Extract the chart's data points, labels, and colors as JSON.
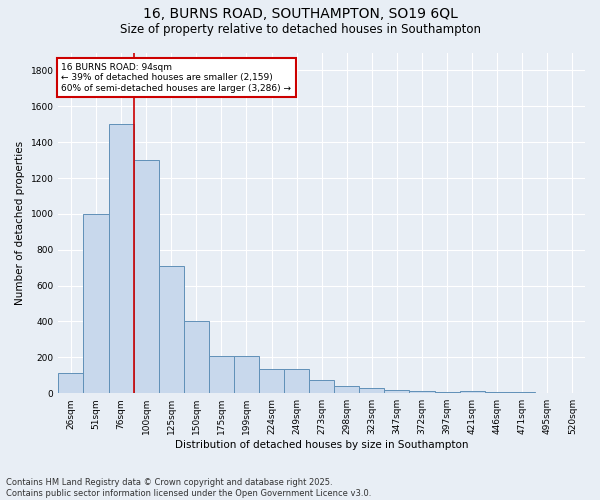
{
  "title_line1": "16, BURNS ROAD, SOUTHAMPTON, SO19 6QL",
  "title_line2": "Size of property relative to detached houses in Southampton",
  "xlabel": "Distribution of detached houses by size in Southampton",
  "ylabel": "Number of detached properties",
  "categories": [
    "26sqm",
    "51sqm",
    "76sqm",
    "100sqm",
    "125sqm",
    "150sqm",
    "175sqm",
    "199sqm",
    "224sqm",
    "249sqm",
    "273sqm",
    "298sqm",
    "323sqm",
    "347sqm",
    "372sqm",
    "397sqm",
    "421sqm",
    "446sqm",
    "471sqm",
    "495sqm",
    "520sqm"
  ],
  "values": [
    110,
    1000,
    1500,
    1300,
    710,
    400,
    210,
    210,
    135,
    135,
    75,
    40,
    30,
    18,
    15,
    5,
    15,
    5,
    5,
    0,
    0
  ],
  "bar_color": "#c8d8ec",
  "bar_edge_color": "#6090b8",
  "background_color": "#e8eef5",
  "grid_color": "#ffffff",
  "vline_color": "#cc0000",
  "vline_pos": 2.5,
  "annotation_text": "16 BURNS ROAD: 94sqm\n← 39% of detached houses are smaller (2,159)\n60% of semi-detached houses are larger (3,286) →",
  "annotation_box_facecolor": "#ffffff",
  "annotation_box_edgecolor": "#cc0000",
  "footnote": "Contains HM Land Registry data © Crown copyright and database right 2025.\nContains public sector information licensed under the Open Government Licence v3.0.",
  "ylim": [
    0,
    1900
  ],
  "yticks": [
    0,
    200,
    400,
    600,
    800,
    1000,
    1200,
    1400,
    1600,
    1800
  ],
  "title_fontsize": 10,
  "subtitle_fontsize": 8.5,
  "axis_label_fontsize": 7.5,
  "tick_fontsize": 6.5,
  "annotation_fontsize": 6.5,
  "footnote_fontsize": 6.0
}
